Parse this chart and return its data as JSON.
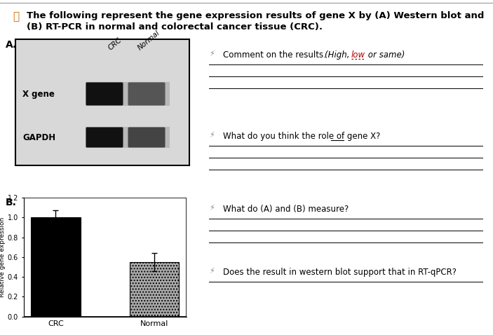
{
  "title_line1": "The following represent the gene expression results of gene X by (A) Western blot and",
  "title_line2": "(B) RT-PCR in normal and colorectal cancer tissue (CRC).",
  "panel_A_label": "A.",
  "panel_B_label": "B.",
  "wb_col_labels": [
    "CRC",
    "Normal"
  ],
  "wb_row_labels": [
    "X gene",
    "GAPDH"
  ],
  "wb_bg_color": "#d8d8d8",
  "wb_band_area_color": "#b8b8b8",
  "wb_band_xgene_crc": "#111111",
  "wb_band_xgene_normal": "#555555",
  "wb_band_gapdh_crc": "#111111",
  "wb_band_gapdh_normal": "#444444",
  "bar_categories": [
    "CRC",
    "Normal"
  ],
  "bar_values": [
    1.0,
    0.55
  ],
  "bar_errors": [
    0.07,
    0.09
  ],
  "bar_color_crc": "#000000",
  "bar_color_normal": "#aaaaaa",
  "bar_hatch_normal": "....",
  "bar_ylabel": "Relative gene expression",
  "bar_ylim": [
    0,
    1.2
  ],
  "bar_yticks": [
    0,
    0.2,
    0.4,
    0.6,
    0.8,
    1.0,
    1.2
  ],
  "q1_text": "Comment on the results. ",
  "q1_sub": "(High, ",
  "q1_low": "low",
  "q1_rest": " or same)",
  "q2_text": "What do you think the role of gene X?",
  "q3_text": "What do (A) and (B) measure?",
  "q4_text": "Does the result in western blot support that in RT-qPCR?",
  "bg_color": "#ffffff",
  "top_line_color": "#aaaaaa",
  "icon_color": "#888888",
  "title_fontsize": 9.5,
  "q_fontsize": 8.5,
  "bar_label_fontsize": 8,
  "bar_tick_fontsize": 7
}
